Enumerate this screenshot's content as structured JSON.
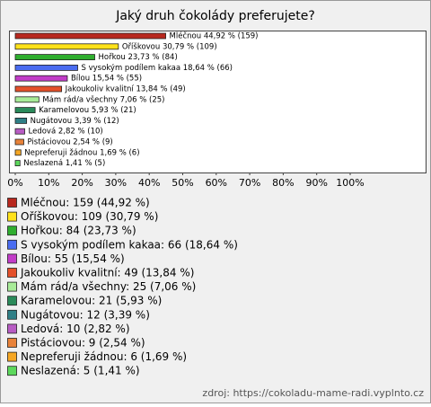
{
  "chart_data": {
    "type": "bar",
    "orientation": "horizontal",
    "title": "Jaký druh čokolády preferujete?",
    "values": [
      44.92,
      30.79,
      23.73,
      18.64,
      15.54,
      13.84,
      7.06,
      5.93,
      3.39,
      2.82,
      2.54,
      1.69,
      1.41
    ],
    "value_labels": [
      "Mléčnou 44,92 % (159)",
      "Oříškovou 30,79 % (109)",
      "Hořkou 23,73 % (84)",
      "S vysokým podílem kakaa 18,64 % (66)",
      "Bílou 15,54 % (55)",
      "Jakoukoliv kvalitní 13,84 % (49)",
      "Mám rád/a všechny 7,06 % (25)",
      "Karamelovou 5,93 % (21)",
      "Nugátovou 3,39 % (12)",
      "Ledová 2,82 % (10)",
      "Pistáciovou 2,54 % (9)",
      "Nepreferuji žádnou 1,69 % (6)",
      "Neslazená 1,41 % (5)"
    ],
    "legend_labels": [
      "Mléčnou: 159 (44,92 %)",
      "Oříškovou: 109 (30,79 %)",
      "Hořkou: 84 (23,73 %)",
      "S vysokým podílem kakaa: 66 (18,64 %)",
      "Bílou: 55 (15,54 %)",
      "Jakoukoliv kvalitní: 49 (13,84 %)",
      "Mám rád/a všechny: 25 (7,06 %)",
      "Karamelovou: 21 (5,93 %)",
      "Nugátovou: 12 (3,39 %)",
      "Ledová: 10 (2,82 %)",
      "Pistáciovou: 9 (2,54 %)",
      "Nepreferuji žádnou: 6 (1,69 %)",
      "Neslazená: 5 (1,41 %)"
    ],
    "colors": [
      "#b8281e",
      "#ffe21a",
      "#2fae2f",
      "#4a6cf0",
      "#c23cc8",
      "#e4502a",
      "#a8eb98",
      "#2a8a5a",
      "#2f7f86",
      "#b85cc4",
      "#e8823a",
      "#f5a623",
      "#5cd85c"
    ],
    "xlim": [
      0,
      100
    ],
    "xticks": [
      {
        "value": 0,
        "label": "0%"
      },
      {
        "value": 10,
        "label": "10%"
      },
      {
        "value": 20,
        "label": "20%"
      },
      {
        "value": 30,
        "label": "30%"
      },
      {
        "value": 40,
        "label": "40%"
      },
      {
        "value": 50,
        "label": "50%"
      },
      {
        "value": 60,
        "label": "60%"
      },
      {
        "value": 70,
        "label": "70%"
      },
      {
        "value": 80,
        "label": "80%"
      },
      {
        "value": 90,
        "label": "90%"
      },
      {
        "value": 100,
        "label": "100%"
      }
    ],
    "source": "zdroj: https://cokoladu-mame-radi.vyplnto.cz"
  }
}
